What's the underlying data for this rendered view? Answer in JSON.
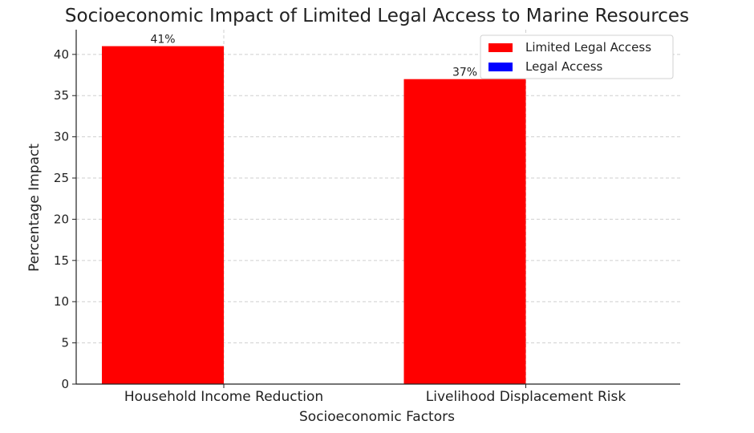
{
  "chart_data": {
    "type": "bar",
    "title": "Socioeconomic Impact of Limited Legal Access to Marine Resources",
    "xlabel": "Socioeconomic Factors",
    "ylabel": "Percentage Impact",
    "categories": [
      "Household Income Reduction",
      "Livelihood Displacement Risk"
    ],
    "series": [
      {
        "name": "Limited Legal Access",
        "values": [
          41,
          37
        ],
        "data_labels": [
          "41%",
          "37%"
        ],
        "color": "#ff0000"
      },
      {
        "name": "Legal Access",
        "values": [
          null,
          null
        ],
        "data_labels": [
          null,
          null
        ],
        "color": "#0000ff"
      }
    ],
    "ylim": [
      0,
      43
    ],
    "yticks": [
      0,
      5,
      10,
      15,
      20,
      25,
      30,
      35,
      40
    ],
    "grid": true,
    "legend_position": "top-right"
  }
}
